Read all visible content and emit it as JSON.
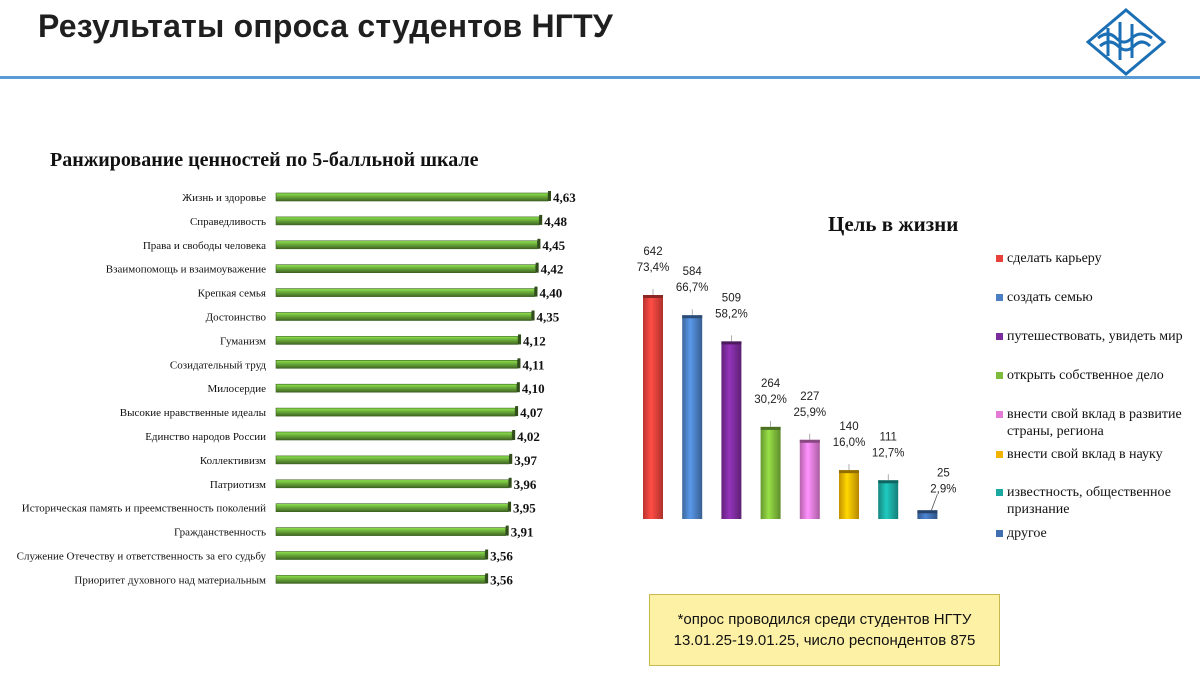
{
  "header": {
    "title": "Результаты опроса студентов НГТУ",
    "accent_color": "#5b9bd5"
  },
  "logo": {
    "icon": "university-logo-icon",
    "color": "#1b6fb5"
  },
  "chart_data": [
    {
      "type": "bar",
      "orientation": "horizontal",
      "title": "Ранжирование ценностей по 5-балльной шкале",
      "categories": [
        "Жизнь и здоровье",
        "Справедливость",
        "Права и свободы человека",
        "Взаимопомощь и взаимоуважение",
        "Крепкая семья",
        "Достоинство",
        "Гуманизм",
        "Созидательный труд",
        "Милосердие",
        "Высокие нравственные идеалы",
        "Единство народов России",
        "Коллективизм",
        "Патриотизм",
        "Историческая память и преемственность поколений",
        "Гражданственность",
        "Служение Отечеству и ответственность за его судьбу",
        "Приоритет духовного над материальным"
      ],
      "values": [
        4.63,
        4.48,
        4.45,
        4.42,
        4.4,
        4.35,
        4.12,
        4.11,
        4.1,
        4.07,
        4.02,
        3.97,
        3.96,
        3.95,
        3.91,
        3.56,
        3.56
      ],
      "value_labels": [
        "4,63",
        "4,48",
        "4,45",
        "4,42",
        "4,40",
        "4,35",
        "4,12",
        "4,11",
        "4,10",
        "4,07",
        "4,02",
        "3,97",
        "3,96",
        "3,95",
        "3,91",
        "3,56",
        "3,56"
      ],
      "bar_color": "#6aaa3a",
      "axis_min": 0,
      "xlabel": "",
      "ylabel": ""
    },
    {
      "type": "bar",
      "orientation": "vertical",
      "title": "Цель в жизни",
      "categories": [
        "сделать карьеру",
        "создать семью",
        "путешествовать, увидеть мир",
        "открыть собственное дело",
        "внести свой вклад в развитие страны, региона",
        "внести свой вклад в науку",
        "известность, общественное признание",
        "другое"
      ],
      "values": [
        642,
        584,
        509,
        264,
        227,
        140,
        111,
        25
      ],
      "percent_labels": [
        "73,4%",
        "66,7%",
        "58,2%",
        "30,2%",
        "25,9%",
        "16,0%",
        "12,7%",
        "2,9%"
      ],
      "colors": [
        "#e8403a",
        "#4a7fc3",
        "#7b2b9b",
        "#7fbb3a",
        "#e27ad6",
        "#f2b400",
        "#1aa8a0",
        "#3f6fb0"
      ],
      "legend_position": "right",
      "xlabel": "",
      "ylabel": ""
    }
  ],
  "note": {
    "line1": "*опрос проводился среди студентов НГТУ",
    "line2": "13.01.25-19.01.25, число респондентов 875"
  }
}
